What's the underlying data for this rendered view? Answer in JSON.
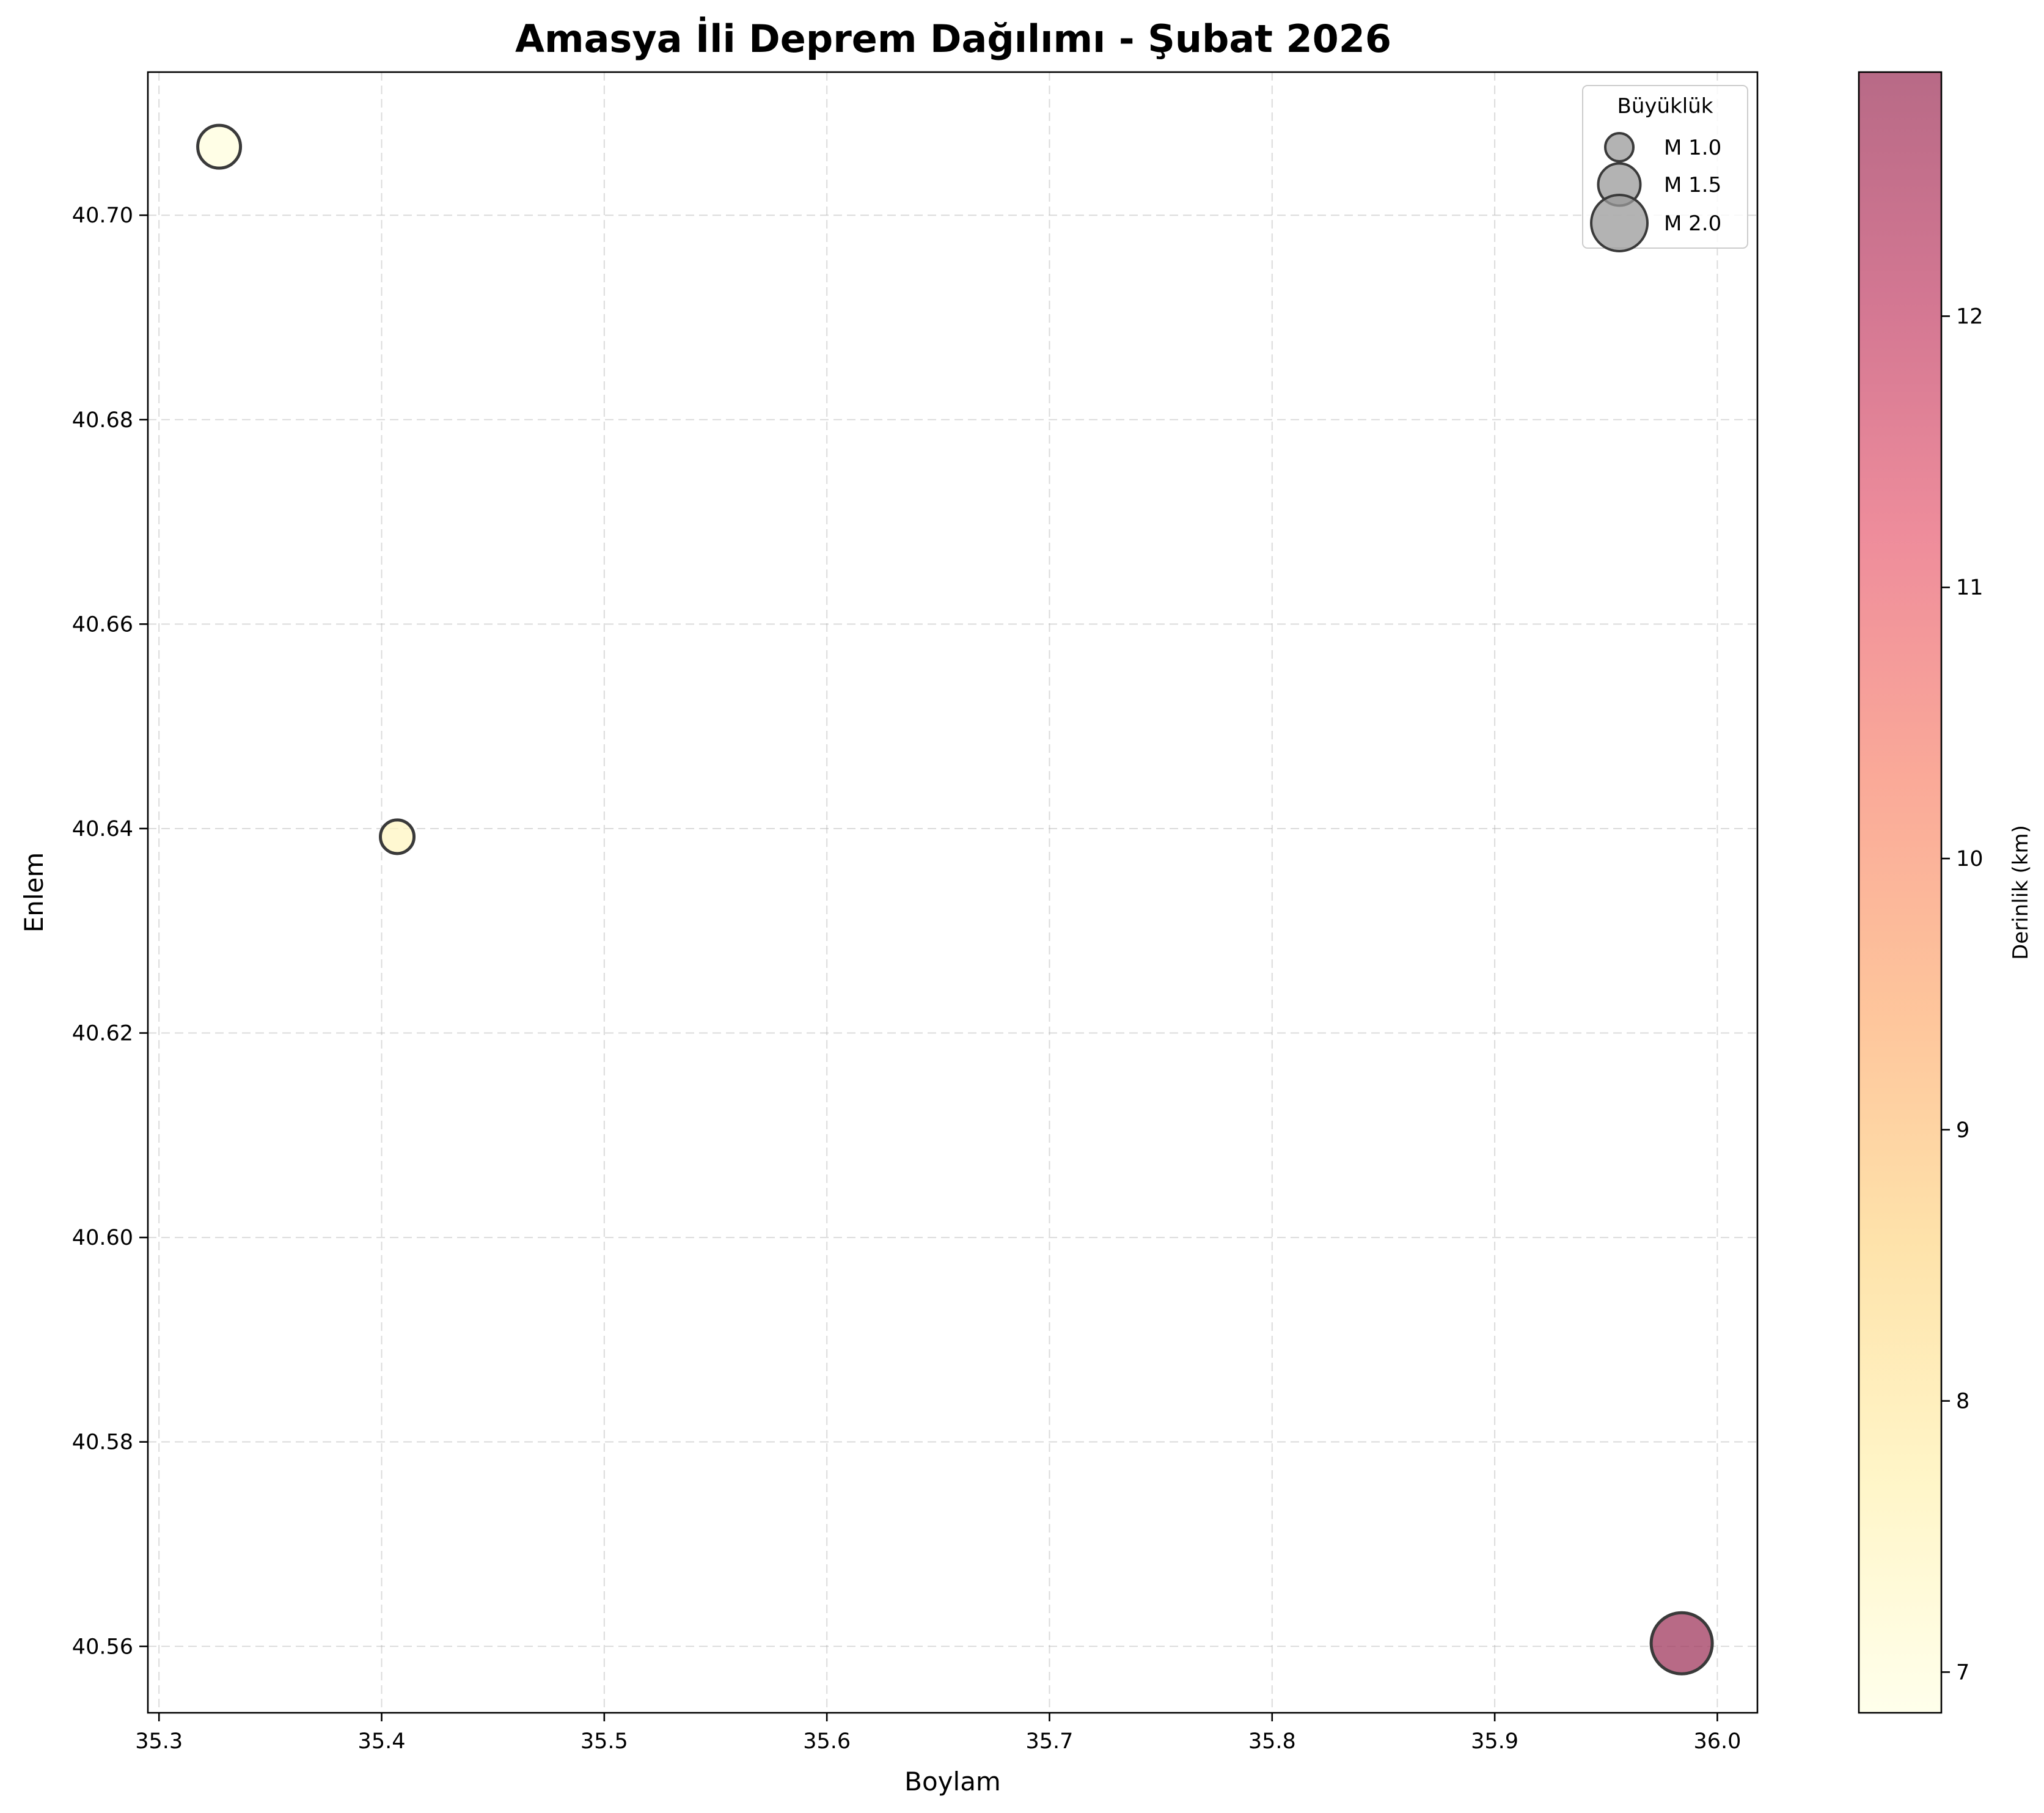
{
  "chart_data": {
    "type": "scatter",
    "title": "Amasya İli Deprem Dağılımı - Şubat 2026",
    "xlabel": "Boylam",
    "ylabel": "Enlem",
    "xlim": [
      35.295,
      36.018
    ],
    "ylim": [
      40.5535,
      40.714
    ],
    "x_ticks": [
      35.3,
      35.4,
      35.5,
      35.6,
      35.7,
      35.8,
      35.9,
      36.0
    ],
    "x_tick_labels": [
      "35.3",
      "35.4",
      "35.5",
      "35.6",
      "35.7",
      "35.8",
      "35.9",
      "36.0"
    ],
    "y_ticks": [
      40.56,
      40.58,
      40.6,
      40.62,
      40.64,
      40.66,
      40.68,
      40.7
    ],
    "y_tick_labels": [
      "40.56",
      "40.58",
      "40.60",
      "40.62",
      "40.64",
      "40.66",
      "40.68",
      "40.70"
    ],
    "grid": true,
    "points": [
      {
        "lon": 35.327,
        "lat": 40.7067,
        "magnitude": 1.4,
        "depth_km": 7.0
      },
      {
        "lon": 35.407,
        "lat": 40.6392,
        "magnitude": 1.1,
        "depth_km": 7.5
      },
      {
        "lon": 35.984,
        "lat": 40.5603,
        "magnitude": 2.0,
        "depth_km": 12.9
      }
    ],
    "colorbar": {
      "label": "Derinlik (km)",
      "range": [
        6.85,
        12.9
      ],
      "ticks": [
        7,
        8,
        9,
        10,
        11,
        12
      ],
      "tick_labels": [
        "7",
        "8",
        "9",
        "10",
        "11",
        "12"
      ],
      "colormap": "YlOrRd-to-purple",
      "stops": [
        "#ffffe5",
        "#fff2b5",
        "#fed98e",
        "#fdb17a",
        "#f88c76",
        "#e9677a",
        "#c54a6e",
        "#a0385e"
      ]
    },
    "legend": {
      "title": "Büyüklük",
      "position": "top-right",
      "entries": [
        {
          "label": "M 1.0",
          "magnitude": 1.0
        },
        {
          "label": "M 1.5",
          "magnitude": 1.5
        },
        {
          "label": "M 2.0",
          "magnitude": 2.0
        }
      ]
    },
    "marker_edge_color": "#3a3a3a",
    "marker_alpha": 0.75
  }
}
